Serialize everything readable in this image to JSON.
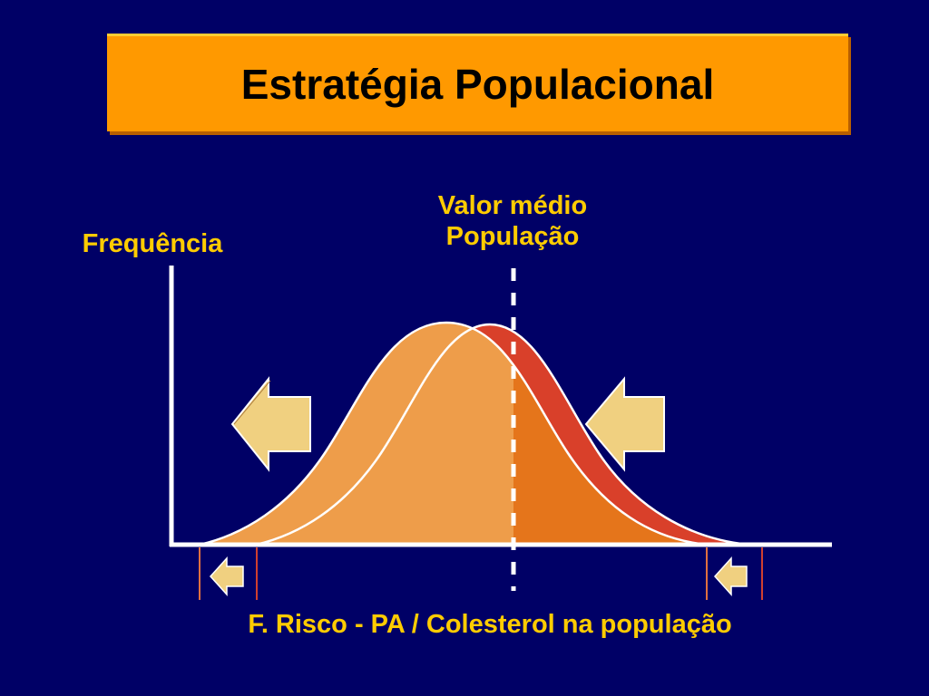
{
  "slide": {
    "title": "Estratégia Populacional",
    "y_axis_label": "Frequência",
    "mean_label_line1": "Valor médio",
    "mean_label_line2": "População",
    "x_axis_label": "F. Risco - PA / Colesterol na população"
  },
  "colors": {
    "background": "#000066",
    "title_box": "#ff9900",
    "label_text": "#ffcc00",
    "shifted_curve": "#ee9d4a",
    "original_curve_right_tail": "#d9402a",
    "overlap_right": "#e5751b",
    "arrow_fill": "#f0d080",
    "axis": "#ffffff",
    "marker_line": "#cc5533"
  },
  "icons": {
    "big_arrows": "left-arrow-icon",
    "small_arrows": "left-arrow-icon"
  }
}
